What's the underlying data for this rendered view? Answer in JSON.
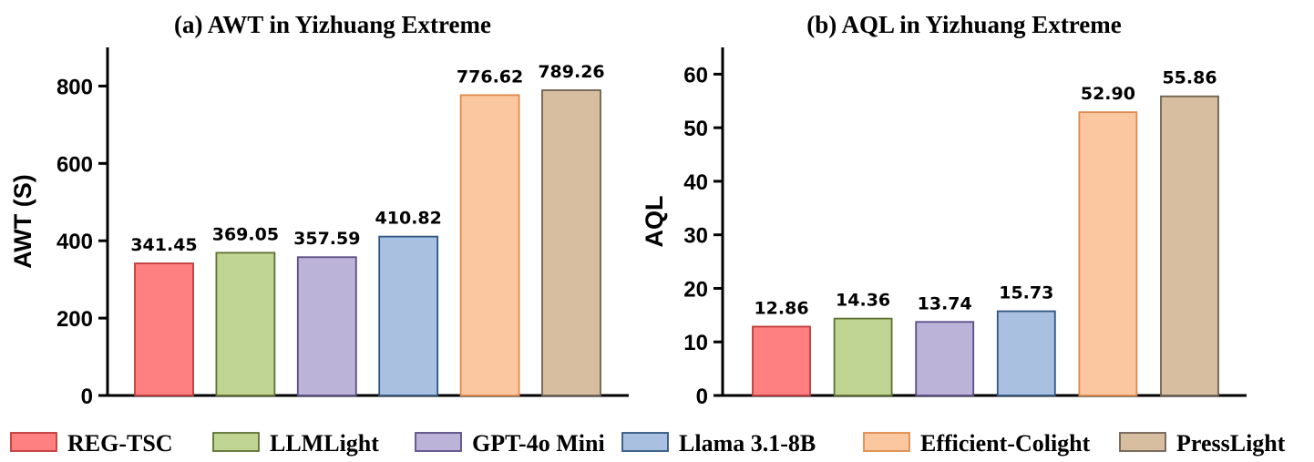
{
  "legend": [
    {
      "label": "REG-TSC",
      "fill": "#ff8080",
      "stroke": "#c0393b"
    },
    {
      "label": "LLMLight",
      "fill": "#c0d494",
      "stroke": "#5e7132"
    },
    {
      "label": "GPT-4o Mini",
      "fill": "#bcb3d9",
      "stroke": "#5a4e86"
    },
    {
      "label": "Llama 3.1-8B",
      "fill": "#a9c0e0",
      "stroke": "#2f5680"
    },
    {
      "label": "Efficient-Colight",
      "fill": "#fbc7a1",
      "stroke": "#e08a4c"
    },
    {
      "label": "PressLight",
      "fill": "#d7bea0",
      "stroke": "#6d6152"
    }
  ],
  "chart_data": [
    {
      "type": "bar",
      "title": "(a) AWT in Yizhuang Extreme",
      "ylabel": "AWT (S)",
      "xlabel": "",
      "ylim": [
        0,
        900
      ],
      "yticks": [
        "0",
        "200",
        "400",
        "600",
        "800"
      ],
      "categories": [
        "REG-TSC",
        "LLMLight",
        "GPT-4o Mini",
        "Llama 3.1-8B",
        "Efficient-Colight",
        "PressLight"
      ],
      "values": [
        341.45,
        369.05,
        357.59,
        410.82,
        776.62,
        789.26
      ],
      "value_labels": [
        "341.45",
        "369.05",
        "357.59",
        "410.82",
        "776.62",
        "789.26"
      ],
      "grid": false
    },
    {
      "type": "bar",
      "title": "(b) AQL in Yizhuang Extreme",
      "ylabel": "AQL",
      "xlabel": "",
      "ylim": [
        0,
        65
      ],
      "yticks": [
        "0",
        "10",
        "20",
        "30",
        "40",
        "50",
        "60"
      ],
      "categories": [
        "REG-TSC",
        "LLMLight",
        "GPT-4o Mini",
        "Llama 3.1-8B",
        "Efficient-Colight",
        "PressLight"
      ],
      "values": [
        12.86,
        14.36,
        13.74,
        15.73,
        52.9,
        55.86
      ],
      "value_labels": [
        "12.86",
        "14.36",
        "13.74",
        "15.73",
        "52.90",
        "55.86"
      ],
      "grid": false
    }
  ]
}
